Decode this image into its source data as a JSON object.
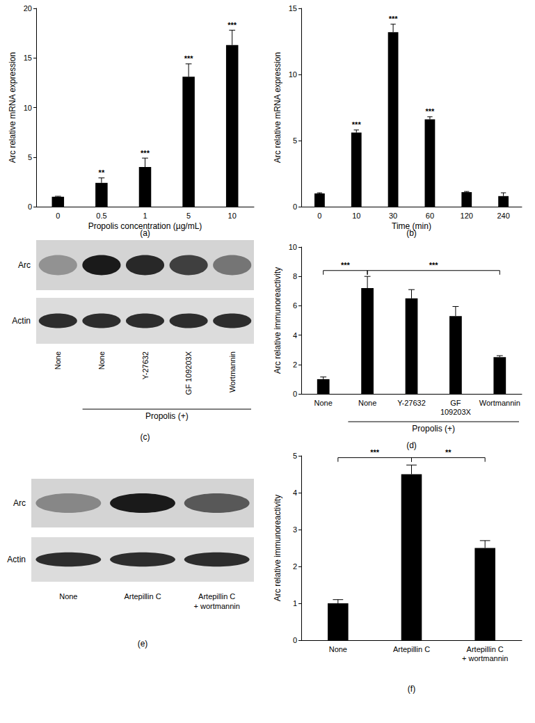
{
  "chart_data": [
    {
      "type": "bar",
      "caption": "(a)",
      "xlabel": "Propolis concentration (µg/mL)",
      "ylabel": "Arc relative mRNA expression",
      "categories": [
        "0",
        "0.5",
        "1",
        "5",
        "10"
      ],
      "values": [
        1,
        2.4,
        4,
        13.1,
        16.3
      ],
      "errors": [
        0.05,
        0.5,
        0.9,
        1.3,
        1.5
      ],
      "significance": [
        null,
        "**",
        "***",
        "***",
        "***"
      ],
      "color": "#000000",
      "ylim": [
        0,
        20
      ],
      "yticks": [
        0,
        5,
        10,
        15,
        20
      ],
      "grid": false
    },
    {
      "type": "bar",
      "caption": "(b)",
      "xlabel": "Time (min)",
      "ylabel": "Arc relative mRNA expression",
      "categories": [
        "0",
        "10",
        "30",
        "60",
        "120",
        "240"
      ],
      "values": [
        1,
        5.6,
        13.2,
        6.6,
        1.1,
        0.8
      ],
      "errors": [
        0.05,
        0.2,
        0.6,
        0.2,
        0.05,
        0.25
      ],
      "significance": [
        null,
        "***",
        "***",
        "***",
        null,
        null
      ],
      "color": "#000000",
      "ylim": [
        0,
        15
      ],
      "yticks": [
        0,
        5,
        10,
        15
      ],
      "grid": false
    },
    {
      "type": "bar",
      "caption": "(d)",
      "ylabel": "Arc relative immunoreactivity",
      "categories": [
        "None",
        "None",
        "Y-27632",
        "GF\n109203X",
        "Wortmannin"
      ],
      "values": [
        1,
        7.2,
        6.5,
        5.3,
        2.5
      ],
      "errors": [
        0.15,
        0.8,
        0.6,
        0.65,
        0.1
      ],
      "comparisons": [
        {
          "from": 0,
          "to": 1,
          "label": "***"
        },
        {
          "from": 1,
          "to": 4,
          "label": "***"
        }
      ],
      "groups": [
        {
          "label": "Propolis (+)",
          "from": 1,
          "to": 4
        }
      ],
      "color": "#000000",
      "ylim": [
        0,
        10
      ],
      "yticks": [
        0,
        2,
        4,
        6,
        8,
        10
      ],
      "grid": false
    },
    {
      "type": "bar",
      "caption": "(f)",
      "ylabel": "Arc relative immunoreactivity",
      "categories": [
        "None",
        "Artepillin C",
        "Artepillin C\n+ wortmannin"
      ],
      "values": [
        1,
        4.5,
        2.5
      ],
      "errors": [
        0.1,
        0.25,
        0.2
      ],
      "comparisons": [
        {
          "from": 0,
          "to": 1,
          "label": "***"
        },
        {
          "from": 1,
          "to": 2,
          "label": "**"
        }
      ],
      "color": "#000000",
      "ylim": [
        0,
        5
      ],
      "yticks": [
        0,
        1,
        2,
        3,
        4,
        5
      ],
      "grid": false
    }
  ],
  "blots": [
    {
      "caption": "(c)",
      "rows": [
        "Arc",
        "Actin"
      ],
      "lanes": [
        "None",
        "None",
        "Y-27632",
        "GF 109203X",
        "Wortmannin"
      ],
      "groups": [
        {
          "label": "Propolis (+)",
          "from": 1,
          "to": 4
        }
      ]
    },
    {
      "caption": "(e)",
      "rows": [
        "Arc",
        "Actin"
      ],
      "lanes": [
        "None",
        "Artepillin C",
        "Artepillin C\n+ wortmannin"
      ]
    }
  ]
}
